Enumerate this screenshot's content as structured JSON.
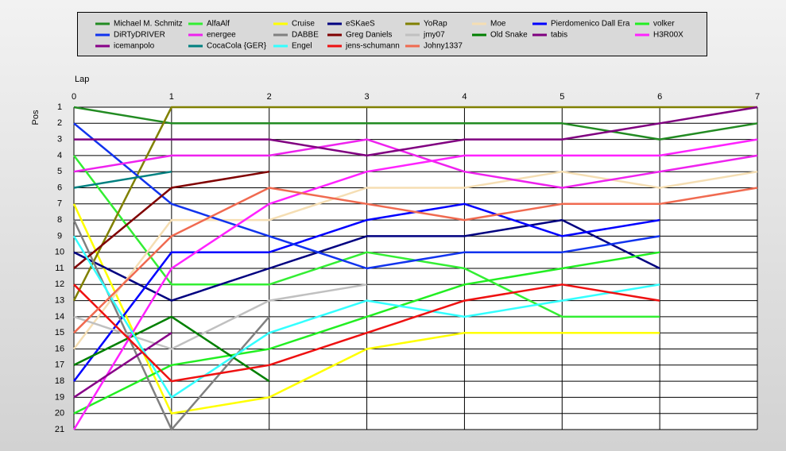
{
  "chart_data": {
    "type": "line",
    "x_label": "Lap",
    "y_label": "Pos",
    "x": [
      0,
      1,
      2,
      3,
      4,
      5,
      6,
      7
    ],
    "xlim": [
      0,
      7
    ],
    "xticks": [
      0,
      1,
      2,
      3,
      4,
      5,
      6,
      7
    ],
    "ylim": [
      21,
      1
    ],
    "yticks": [
      1,
      2,
      3,
      4,
      5,
      6,
      7,
      8,
      9,
      10,
      11,
      12,
      13,
      14,
      15,
      16,
      17,
      18,
      19,
      20,
      21
    ],
    "grid": true,
    "series": [
      {
        "name": "Michael M. Schmitz",
        "color": "#228b22",
        "values": [
          1,
          2,
          2,
          2,
          2,
          2,
          3,
          2
        ]
      },
      {
        "name": "AlfaAlf",
        "color": "#33ee33",
        "values": [
          4,
          12,
          12,
          10,
          11,
          14,
          14,
          null
        ]
      },
      {
        "name": "Cruise",
        "color": "#ffff00",
        "values": [
          7,
          20,
          19,
          16,
          15,
          15,
          15,
          null
        ]
      },
      {
        "name": "eSKaeS",
        "color": "#000080",
        "values": [
          10,
          13,
          11,
          9,
          9,
          8,
          11,
          null
        ]
      },
      {
        "name": "YoRap",
        "color": "#808000",
        "values": [
          13,
          1,
          1,
          1,
          1,
          1,
          1,
          1
        ]
      },
      {
        "name": "Moe",
        "color": "#f5deb3",
        "values": [
          16,
          8,
          8,
          6,
          6,
          5,
          6,
          5
        ]
      },
      {
        "name": "Pierdomenico Dall Era",
        "color": "#0000ff",
        "values": [
          18,
          10,
          10,
          8,
          7,
          9,
          8,
          null
        ]
      },
      {
        "name": "volker",
        "color": "#22ee22",
        "values": [
          20,
          17,
          16,
          14,
          12,
          11,
          10,
          null
        ]
      },
      {
        "name": "DiRTyDRIVER",
        "color": "#1133ee",
        "values": [
          2,
          7,
          9,
          11,
          10,
          10,
          9,
          null
        ]
      },
      {
        "name": "energee",
        "color": "#ee22ee",
        "values": [
          5,
          4,
          4,
          3,
          5,
          6,
          5,
          4
        ]
      },
      {
        "name": "DABBE",
        "color": "#808080",
        "values": [
          8,
          21,
          14,
          null,
          null,
          null,
          null,
          null
        ]
      },
      {
        "name": "Greg Daniels",
        "color": "#800000",
        "values": [
          11,
          6,
          5,
          null,
          null,
          null,
          null,
          null
        ]
      },
      {
        "name": "jmy07",
        "color": "#c0c0c0",
        "values": [
          14,
          16,
          13,
          12,
          null,
          null,
          null,
          null
        ]
      },
      {
        "name": "Old Snake",
        "color": "#008000",
        "values": [
          17,
          14,
          18,
          null,
          null,
          null,
          null,
          null
        ]
      },
      {
        "name": "tabis",
        "color": "#800080",
        "values": [
          3,
          3,
          3,
          4,
          3,
          3,
          2,
          1
        ]
      },
      {
        "name": "H3R00X",
        "color": "#ff22ff",
        "values": [
          21,
          11,
          7,
          5,
          4,
          4,
          4,
          3
        ]
      },
      {
        "name": "icemanpolo",
        "color": "#880088",
        "values": [
          19,
          15,
          null,
          null,
          null,
          null,
          null,
          null
        ]
      },
      {
        "name": "CocaCola {GER}",
        "color": "#008080",
        "values": [
          6,
          5,
          null,
          null,
          null,
          null,
          null,
          null
        ]
      },
      {
        "name": "Engel",
        "color": "#33ffff",
        "values": [
          9,
          19,
          15,
          13,
          14,
          13,
          12,
          null
        ]
      },
      {
        "name": "jens-schumann",
        "color": "#ee1111",
        "values": [
          12,
          18,
          17,
          15,
          13,
          12,
          13,
          null
        ]
      },
      {
        "name": "Johny1337",
        "color": "#f06a50",
        "values": [
          15,
          9,
          6,
          7,
          8,
          7,
          7,
          6
        ]
      }
    ]
  }
}
